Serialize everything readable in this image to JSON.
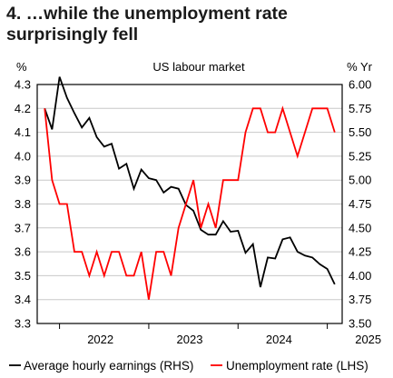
{
  "chart_data": {
    "type": "line",
    "title": "4. …while the unemployment rate surprisingly fell",
    "subtitle": "US labour market",
    "left_axis": {
      "unit_label": "%",
      "ylim": [
        3.3,
        4.3
      ],
      "ticks": [
        "4.3",
        "4.2",
        "4.1",
        "4.0",
        "3.9",
        "3.8",
        "3.7",
        "3.6",
        "3.5",
        "3.4",
        "3.3"
      ]
    },
    "right_axis": {
      "unit_label": "% Yr",
      "ylim": [
        3.5,
        6.0
      ],
      "ticks": [
        "6.00",
        "5.75",
        "5.50",
        "5.25",
        "5.00",
        "4.75",
        "4.50",
        "4.25",
        "4.00",
        "3.75",
        "3.50"
      ]
    },
    "x_axis": {
      "tick_labels": [
        "2022",
        "2023",
        "2024",
        "2025"
      ],
      "xlim": [
        "2021-10",
        "2025-03"
      ]
    },
    "grid": "horizontal",
    "legend_position": "bottom",
    "series": [
      {
        "name": "Average hourly earnings (RHS)",
        "axis": "right",
        "color": "#000000",
        "x": [
          "2021-11",
          "2021-12",
          "2022-01",
          "2022-02",
          "2022-03",
          "2022-04",
          "2022-05",
          "2022-06",
          "2022-07",
          "2022-08",
          "2022-09",
          "2022-10",
          "2022-11",
          "2022-12",
          "2023-01",
          "2023-02",
          "2023-03",
          "2023-04",
          "2023-05",
          "2023-06",
          "2023-07",
          "2023-08",
          "2023-09",
          "2023-10",
          "2023-11",
          "2023-12",
          "2024-01",
          "2024-02",
          "2024-03",
          "2024-04",
          "2024-05",
          "2024-06",
          "2024-07",
          "2024-08",
          "2024-09",
          "2024-10",
          "2024-11",
          "2024-12",
          "2025-01",
          "2025-02"
        ],
        "values": [
          5.75,
          5.53,
          6.08,
          5.86,
          5.7,
          5.55,
          5.65,
          5.45,
          5.35,
          5.38,
          5.12,
          5.17,
          4.91,
          5.11,
          5.02,
          5.0,
          4.87,
          4.93,
          4.91,
          4.74,
          4.68,
          4.48,
          4.43,
          4.43,
          4.57,
          4.46,
          4.47,
          4.24,
          4.33,
          3.88,
          4.19,
          4.18,
          4.38,
          4.4,
          4.25,
          4.21,
          4.19,
          4.12,
          4.07,
          3.91
        ]
      },
      {
        "name": "Unemployment rate (LHS)",
        "axis": "left",
        "color": "#ff0000",
        "x": [
          "2021-11",
          "2021-12",
          "2022-01",
          "2022-02",
          "2022-03",
          "2022-04",
          "2022-05",
          "2022-06",
          "2022-07",
          "2022-08",
          "2022-09",
          "2022-10",
          "2022-11",
          "2022-12",
          "2023-01",
          "2023-02",
          "2023-03",
          "2023-04",
          "2023-05",
          "2023-06",
          "2023-07",
          "2023-08",
          "2023-09",
          "2023-10",
          "2023-11",
          "2023-12",
          "2024-01",
          "2024-02",
          "2024-03",
          "2024-04",
          "2024-05",
          "2024-06",
          "2024-07",
          "2024-08",
          "2024-09",
          "2024-10",
          "2024-11",
          "2024-12",
          "2025-01",
          "2025-02"
        ],
        "values": [
          4.2,
          3.9,
          3.8,
          3.8,
          3.6,
          3.6,
          3.5,
          3.6,
          3.5,
          3.6,
          3.6,
          3.5,
          3.5,
          3.6,
          3.4,
          3.6,
          3.6,
          3.5,
          3.7,
          3.8,
          3.9,
          3.7,
          3.8,
          3.7,
          3.9,
          3.9,
          3.9,
          4.1,
          4.2,
          4.2,
          4.1,
          4.1,
          4.2,
          4.1,
          4.0,
          4.1,
          4.2,
          4.2,
          4.2,
          4.1
        ]
      }
    ]
  }
}
